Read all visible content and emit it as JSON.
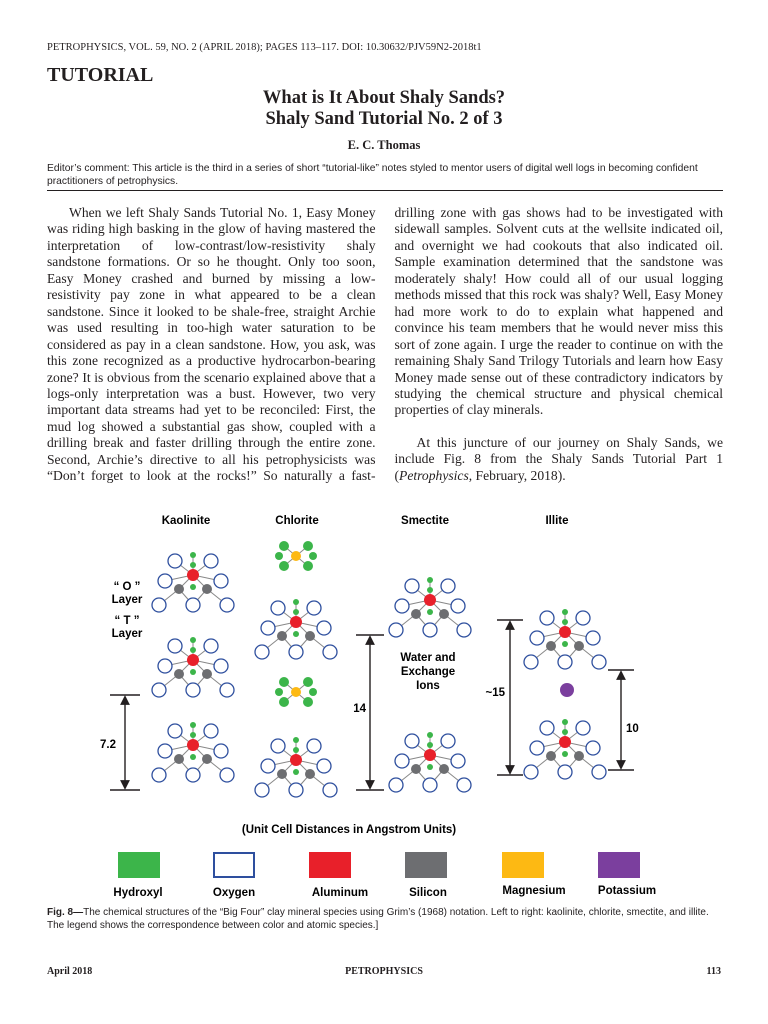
{
  "header": {
    "citation": "PETROPHYSICS, VOL. 59, NO. 2 (APRIL 2018); PAGES 113–117. DOI: 10.30632/PJV59N2-2018t1",
    "section": "TUTORIAL",
    "title": [
      "What is It About Shaly Sands?",
      "Shaly Sand Tutorial No. 2 of 3"
    ],
    "author": "E. C. Thomas"
  },
  "editor_comment": "Editor’s comment: This article is the third in a series of short “tutorial-like” notes styled to mentor users of digital well logs in becoming confident practitioners of petrophysics.",
  "body": {
    "paragraphs": [
      "When we left Shaly Sands Tutorial No. 1, Easy Money was riding high basking in the glow of having mastered the interpretation of low-contrast/low-resistivity shaly sandstone formations. Or so he thought. Only too soon, Easy Money crashed and burned by missing a low-resistivity pay zone in what appeared to be a clean sandstone. Since it looked to be shale-free, straight Archie was used resulting in too-high water saturation to be considered as pay in a clean sandstone. How, you ask, was this zone recognized as a productive hydrocarbon-bearing zone? It is obvious from the scenario explained above that a logs-only interpretation was a bust. However, two very important data streams had yet to be reconciled: First, the mud log showed a substantial gas show, coupled with a drilling break and faster drilling through the entire zone. Second, Archie’s directive to all his petrophysicists was “Don’t forget to look at the rocks!” So naturally a fast-drilling zone with gas shows had to be investigated with sidewall samples. Solvent cuts at the wellsite indicated oil, and overnight we had cookouts that also indicated oil. Sample examination determined that the sandstone was moderately shaly! How could all of our usual logging methods missed that this rock was shaly? Well, Easy Money had more work to do to explain what happened and convince his team members that he would never miss this sort of zone again. I urge the reader to continue on with the remaining Shaly Sand Trilogy Tutorials and learn how Easy Money made sense out of these contradictory indicators by studying the chemical structure and physical chemical properties of clay minerals.",
      [
        "At this juncture of our journey on Shaly Sands, we include Fig. 8 from the Shaly Sands Tutorial Part 1 (",
        "Petrophysics",
        ", February, 2018)."
      ]
    ]
  },
  "figure": {
    "minerals": [
      "Kaolinite",
      "Chlorite",
      "Smectite",
      "Illite"
    ],
    "layer_labels": [
      [
        "“ O ”",
        "Layer"
      ],
      [
        "“ T ”",
        "Layer"
      ]
    ],
    "spacing_labels": [
      "7.2",
      "14",
      "~15",
      "10"
    ],
    "interlayer_label": [
      "Water and",
      "Exchange",
      "Ions"
    ],
    "units_note": "(Unit Cell Distances in Angstrom Units)",
    "legend": [
      "Hydroxyl",
      "Oxygen",
      "Aluminum",
      "Silicon",
      "Magnesium",
      "Potassium"
    ],
    "caption": {
      "label": "Fig. 8—",
      "text": "The chemical structures of the “Big Four” clay mineral species using Grim’s (1968) notation. Left to right: kaolinite, chlorite, smectite, and illite. The legend shows the correspondence between color and atomic species.]"
    }
  },
  "footer": {
    "date": "April 2018",
    "journal": "PETROPHYSICS",
    "page": "113"
  }
}
